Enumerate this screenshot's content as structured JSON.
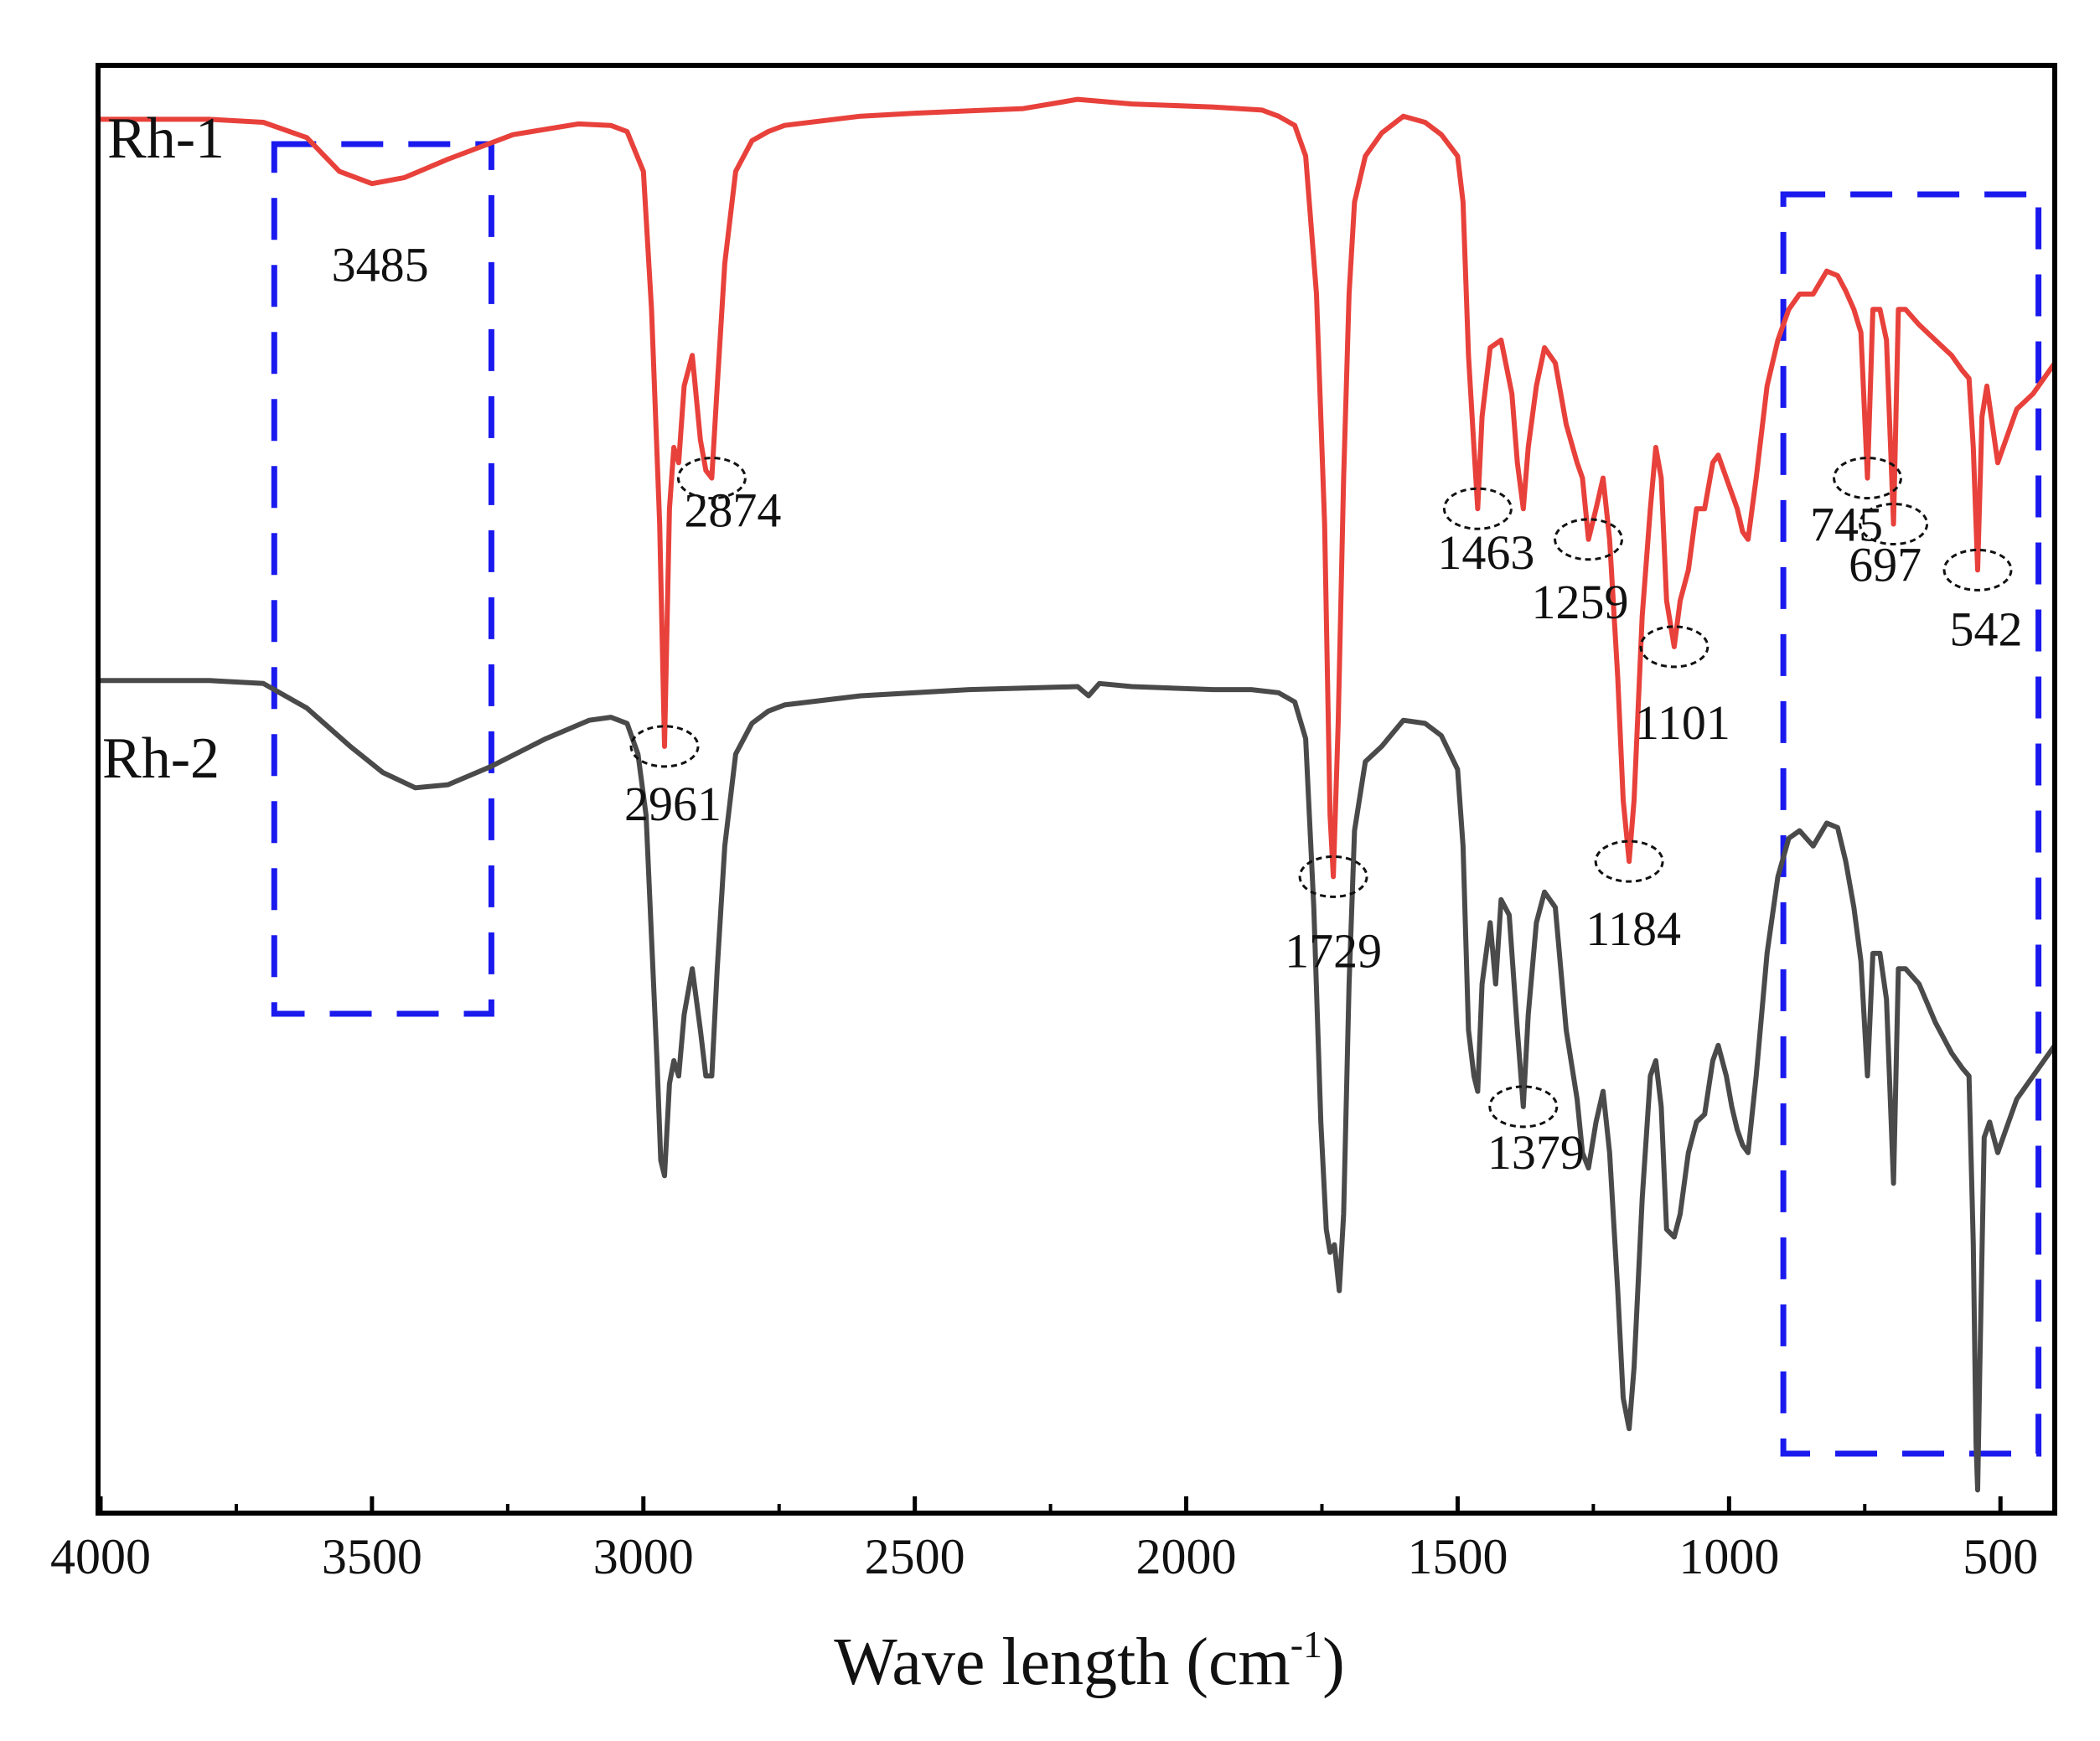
{
  "chart_data": {
    "type": "line",
    "title": "",
    "xlabel": "Wave length (cm",
    "xlabel_sup": "-1",
    "xlabel_close": ")",
    "ylabel": "",
    "xlim": [
      4000,
      400
    ],
    "x_ticks": [
      4000,
      3500,
      3000,
      2500,
      2000,
      1500,
      1000,
      500
    ],
    "x_tick_labels": [
      "4000",
      "3500",
      "3000",
      "2500",
      "2000",
      "1500",
      "1000",
      "500"
    ],
    "y_ticks_shown": false,
    "grid": false,
    "ylim": [
      0,
      1
    ],
    "series": [
      {
        "name": "Rh-1",
        "color": "#e8413b",
        "points": [
          [
            4000,
            0.914
          ],
          [
            3800,
            0.914
          ],
          [
            3700,
            0.912
          ],
          [
            3620,
            0.902
          ],
          [
            3560,
            0.88
          ],
          [
            3500,
            0.872
          ],
          [
            3440,
            0.876
          ],
          [
            3360,
            0.888
          ],
          [
            3240,
            0.904
          ],
          [
            3120,
            0.911
          ],
          [
            3060,
            0.91
          ],
          [
            3030,
            0.906
          ],
          [
            3000,
            0.88
          ],
          [
            2985,
            0.79
          ],
          [
            2970,
            0.65
          ],
          [
            2961,
            0.505
          ],
          [
            2952,
            0.66
          ],
          [
            2944,
            0.7
          ],
          [
            2935,
            0.69
          ],
          [
            2925,
            0.74
          ],
          [
            2910,
            0.76
          ],
          [
            2895,
            0.705
          ],
          [
            2885,
            0.685
          ],
          [
            2874,
            0.68
          ],
          [
            2864,
            0.74
          ],
          [
            2850,
            0.82
          ],
          [
            2830,
            0.88
          ],
          [
            2800,
            0.9
          ],
          [
            2770,
            0.906
          ],
          [
            2740,
            0.91
          ],
          [
            2600,
            0.916
          ],
          [
            2500,
            0.918
          ],
          [
            2300,
            0.921
          ],
          [
            2200,
            0.927
          ],
          [
            2100,
            0.924
          ],
          [
            1950,
            0.922
          ],
          [
            1860,
            0.92
          ],
          [
            1830,
            0.916
          ],
          [
            1800,
            0.91
          ],
          [
            1780,
            0.89
          ],
          [
            1760,
            0.8
          ],
          [
            1745,
            0.65
          ],
          [
            1735,
            0.46
          ],
          [
            1729,
            0.42
          ],
          [
            1720,
            0.52
          ],
          [
            1710,
            0.68
          ],
          [
            1700,
            0.8
          ],
          [
            1690,
            0.86
          ],
          [
            1670,
            0.89
          ],
          [
            1640,
            0.905
          ],
          [
            1600,
            0.916
          ],
          [
            1560,
            0.912
          ],
          [
            1530,
            0.904
          ],
          [
            1500,
            0.89
          ],
          [
            1490,
            0.86
          ],
          [
            1480,
            0.76
          ],
          [
            1470,
            0.7
          ],
          [
            1463,
            0.66
          ],
          [
            1455,
            0.72
          ],
          [
            1440,
            0.765
          ],
          [
            1420,
            0.77
          ],
          [
            1400,
            0.735
          ],
          [
            1390,
            0.69
          ],
          [
            1379,
            0.66
          ],
          [
            1370,
            0.7
          ],
          [
            1355,
            0.74
          ],
          [
            1340,
            0.765
          ],
          [
            1320,
            0.755
          ],
          [
            1300,
            0.715
          ],
          [
            1280,
            0.69
          ],
          [
            1270,
            0.68
          ],
          [
            1259,
            0.64
          ],
          [
            1245,
            0.66
          ],
          [
            1232,
            0.68
          ],
          [
            1220,
            0.64
          ],
          [
            1205,
            0.55
          ],
          [
            1195,
            0.47
          ],
          [
            1184,
            0.43
          ],
          [
            1175,
            0.47
          ],
          [
            1160,
            0.59
          ],
          [
            1145,
            0.66
          ],
          [
            1135,
            0.7
          ],
          [
            1125,
            0.68
          ],
          [
            1115,
            0.6
          ],
          [
            1101,
            0.57
          ],
          [
            1090,
            0.6
          ],
          [
            1075,
            0.62
          ],
          [
            1060,
            0.66
          ],
          [
            1045,
            0.66
          ],
          [
            1030,
            0.69
          ],
          [
            1020,
            0.695
          ],
          [
            1005,
            0.68
          ],
          [
            995,
            0.67
          ],
          [
            985,
            0.66
          ],
          [
            975,
            0.645
          ],
          [
            965,
            0.64
          ],
          [
            950,
            0.68
          ],
          [
            930,
            0.74
          ],
          [
            910,
            0.77
          ],
          [
            890,
            0.79
          ],
          [
            870,
            0.8
          ],
          [
            845,
            0.8
          ],
          [
            820,
            0.815
          ],
          [
            800,
            0.812
          ],
          [
            785,
            0.802
          ],
          [
            770,
            0.79
          ],
          [
            757,
            0.775
          ],
          [
            745,
            0.68
          ],
          [
            735,
            0.79
          ],
          [
            722,
            0.79
          ],
          [
            710,
            0.77
          ],
          [
            697,
            0.65
          ],
          [
            688,
            0.79
          ],
          [
            675,
            0.79
          ],
          [
            650,
            0.78
          ],
          [
            620,
            0.77
          ],
          [
            590,
            0.76
          ],
          [
            570,
            0.75
          ],
          [
            558,
            0.745
          ],
          [
            550,
            0.7
          ],
          [
            542,
            0.62
          ],
          [
            534,
            0.72
          ],
          [
            525,
            0.74
          ],
          [
            515,
            0.715
          ],
          [
            505,
            0.69
          ],
          [
            490,
            0.705
          ],
          [
            470,
            0.725
          ],
          [
            440,
            0.735
          ],
          [
            400,
            0.755
          ]
        ]
      },
      {
        "name": "Rh-2",
        "color": "#4a4a4a",
        "points": [
          [
            4000,
            0.548
          ],
          [
            3800,
            0.548
          ],
          [
            3700,
            0.546
          ],
          [
            3620,
            0.53
          ],
          [
            3540,
            0.505
          ],
          [
            3480,
            0.488
          ],
          [
            3420,
            0.478
          ],
          [
            3360,
            0.48
          ],
          [
            3280,
            0.492
          ],
          [
            3180,
            0.51
          ],
          [
            3100,
            0.522
          ],
          [
            3060,
            0.524
          ],
          [
            3030,
            0.52
          ],
          [
            3010,
            0.5
          ],
          [
            2995,
            0.46
          ],
          [
            2985,
            0.38
          ],
          [
            2975,
            0.3
          ],
          [
            2968,
            0.235
          ],
          [
            2961,
            0.225
          ],
          [
            2952,
            0.285
          ],
          [
            2944,
            0.3
          ],
          [
            2935,
            0.29
          ],
          [
            2925,
            0.33
          ],
          [
            2910,
            0.36
          ],
          [
            2895,
            0.32
          ],
          [
            2885,
            0.29
          ],
          [
            2874,
            0.29
          ],
          [
            2864,
            0.36
          ],
          [
            2850,
            0.44
          ],
          [
            2830,
            0.5
          ],
          [
            2800,
            0.52
          ],
          [
            2770,
            0.528
          ],
          [
            2740,
            0.532
          ],
          [
            2600,
            0.538
          ],
          [
            2400,
            0.542
          ],
          [
            2200,
            0.544
          ],
          [
            2180,
            0.538
          ],
          [
            2160,
            0.546
          ],
          [
            2100,
            0.544
          ],
          [
            1950,
            0.542
          ],
          [
            1880,
            0.542
          ],
          [
            1830,
            0.54
          ],
          [
            1800,
            0.534
          ],
          [
            1780,
            0.51
          ],
          [
            1765,
            0.4
          ],
          [
            1752,
            0.26
          ],
          [
            1742,
            0.19
          ],
          [
            1735,
            0.175
          ],
          [
            1727,
            0.18
          ],
          [
            1718,
            0.15
          ],
          [
            1710,
            0.2
          ],
          [
            1700,
            0.35
          ],
          [
            1690,
            0.45
          ],
          [
            1670,
            0.495
          ],
          [
            1640,
            0.505
          ],
          [
            1600,
            0.522
          ],
          [
            1560,
            0.52
          ],
          [
            1530,
            0.512
          ],
          [
            1500,
            0.49
          ],
          [
            1490,
            0.44
          ],
          [
            1480,
            0.32
          ],
          [
            1470,
            0.29
          ],
          [
            1463,
            0.28
          ],
          [
            1455,
            0.35
          ],
          [
            1440,
            0.39
          ],
          [
            1430,
            0.35
          ],
          [
            1420,
            0.405
          ],
          [
            1405,
            0.395
          ],
          [
            1390,
            0.32
          ],
          [
            1379,
            0.27
          ],
          [
            1370,
            0.33
          ],
          [
            1355,
            0.39
          ],
          [
            1340,
            0.41
          ],
          [
            1320,
            0.4
          ],
          [
            1300,
            0.32
          ],
          [
            1280,
            0.275
          ],
          [
            1270,
            0.24
          ],
          [
            1259,
            0.23
          ],
          [
            1245,
            0.26
          ],
          [
            1232,
            0.28
          ],
          [
            1220,
            0.24
          ],
          [
            1205,
            0.15
          ],
          [
            1195,
            0.08
          ],
          [
            1184,
            0.06
          ],
          [
            1175,
            0.1
          ],
          [
            1160,
            0.21
          ],
          [
            1145,
            0.29
          ],
          [
            1135,
            0.3
          ],
          [
            1125,
            0.27
          ],
          [
            1115,
            0.19
          ],
          [
            1101,
            0.185
          ],
          [
            1090,
            0.2
          ],
          [
            1075,
            0.24
          ],
          [
            1060,
            0.26
          ],
          [
            1045,
            0.265
          ],
          [
            1030,
            0.3
          ],
          [
            1020,
            0.31
          ],
          [
            1005,
            0.29
          ],
          [
            995,
            0.27
          ],
          [
            985,
            0.255
          ],
          [
            975,
            0.245
          ],
          [
            965,
            0.24
          ],
          [
            950,
            0.29
          ],
          [
            930,
            0.37
          ],
          [
            910,
            0.42
          ],
          [
            890,
            0.445
          ],
          [
            870,
            0.45
          ],
          [
            845,
            0.44
          ],
          [
            820,
            0.455
          ],
          [
            800,
            0.452
          ],
          [
            785,
            0.43
          ],
          [
            770,
            0.4
          ],
          [
            757,
            0.365
          ],
          [
            745,
            0.29
          ],
          [
            735,
            0.37
          ],
          [
            722,
            0.37
          ],
          [
            710,
            0.34
          ],
          [
            697,
            0.22
          ],
          [
            688,
            0.36
          ],
          [
            675,
            0.36
          ],
          [
            650,
            0.35
          ],
          [
            620,
            0.325
          ],
          [
            590,
            0.305
          ],
          [
            570,
            0.295
          ],
          [
            558,
            0.29
          ],
          [
            550,
            0.18
          ],
          [
            545,
            0.05
          ],
          [
            542,
            0.02
          ],
          [
            538,
            0.1
          ],
          [
            530,
            0.25
          ],
          [
            520,
            0.26
          ],
          [
            505,
            0.24
          ],
          [
            490,
            0.255
          ],
          [
            470,
            0.275
          ],
          [
            440,
            0.29
          ],
          [
            400,
            0.31
          ]
        ]
      }
    ],
    "annotations": [
      {
        "text": "3485",
        "x": 3485,
        "series": "Rh-1",
        "circled": false
      },
      {
        "text": "2961",
        "x": 2961,
        "series": "Rh-1",
        "circled": true
      },
      {
        "text": "2874",
        "x": 2874,
        "series": "Rh-1",
        "circled": true
      },
      {
        "text": "1729",
        "x": 1729,
        "series": "Rh-1",
        "circled": true
      },
      {
        "text": "1463",
        "x": 1463,
        "series": "Rh-1",
        "circled": true
      },
      {
        "text": "1259",
        "x": 1259,
        "series": "Rh-1",
        "circled": true
      },
      {
        "text": "1184",
        "x": 1184,
        "series": "Rh-1",
        "circled": true
      },
      {
        "text": "1101",
        "x": 1101,
        "series": "Rh-1",
        "circled": true
      },
      {
        "text": "745",
        "x": 745,
        "series": "Rh-1",
        "circled": true
      },
      {
        "text": "697",
        "x": 697,
        "series": "Rh-1",
        "circled": true
      },
      {
        "text": "542",
        "x": 542,
        "series": "Rh-1",
        "circled": true
      },
      {
        "text": "1379",
        "x": 1379,
        "series": "Rh-2",
        "circled": true
      }
    ],
    "highlight_regions": [
      {
        "name": "OH-region",
        "x_from": 3680,
        "x_to": 3280,
        "color": "#1a1aee"
      },
      {
        "name": "fingerprint-region",
        "x_from": 900,
        "x_to": 430,
        "color": "#1a1aee"
      }
    ]
  }
}
